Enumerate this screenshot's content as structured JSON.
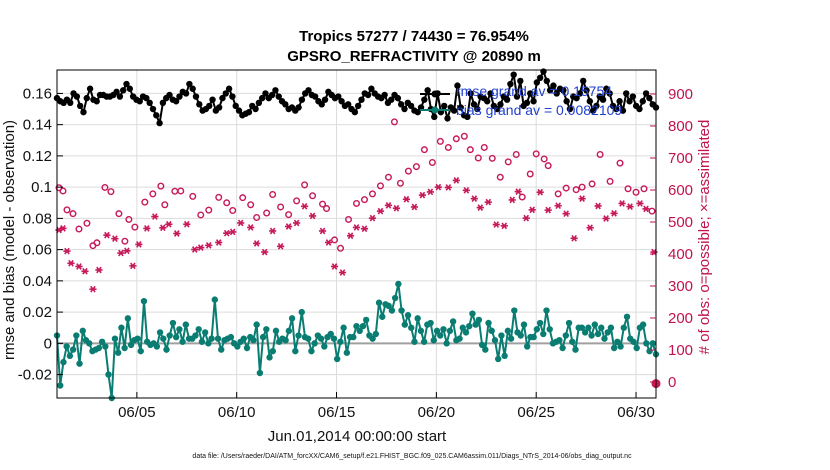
{
  "chart_data": {
    "type": "line",
    "title_line1": "Tropics 57277 / 74430 = 76.954%",
    "title_line2": "GPSRO_REFRACTIVITY @ 20890 m",
    "xlabel": "Jun.01,2014 00:00:00 start",
    "ylabel_left": "rmse and bias (model - observation)",
    "ylabel_right": "# of obs: o=possible; ×=assimilated",
    "xlim": [
      1,
      31
    ],
    "ylim_left": [
      -0.035,
      0.175
    ],
    "ylim_right": [
      -50,
      975
    ],
    "x_ticks": [
      5,
      10,
      15,
      20,
      25,
      30
    ],
    "x_tick_labels": [
      "06/05",
      "06/10",
      "06/15",
      "06/20",
      "06/25",
      "06/30"
    ],
    "y_ticks_left": [
      -0.02,
      0,
      0.02,
      0.04,
      0.06,
      0.08,
      0.1,
      0.12,
      0.14,
      0.16
    ],
    "y_tick_labels_left": [
      "-0.02",
      "0",
      "0.02",
      "0.04",
      "0.06",
      "0.08",
      "0.1",
      "0.12",
      "0.14",
      "0.16"
    ],
    "y_ticks_right": [
      0,
      100,
      200,
      300,
      400,
      500,
      600,
      700,
      800,
      900
    ],
    "y_tick_labels_right": [
      "0",
      "100",
      "200",
      "300",
      "400",
      "500",
      "600",
      "700",
      "800",
      "900"
    ],
    "legend": {
      "rmse_label": "rmse grand av = 0.15754",
      "bias_label": "bias grand av = 0.0082109"
    },
    "footer": "data file: /Users/raeder/DAI/ATM_forcXX/CAM6_setup/f.e21.FHIST_BGC.f09_025.CAM6assim.011/Diags_NTrS_2014-06/obs_diag_output.nc",
    "colors": {
      "rmse": "#000000",
      "bias": "#0a7d72",
      "obs": "#c8185a",
      "zero_line": "#a0a0a0"
    },
    "series": [
      {
        "name": "rmse",
        "axis": "left",
        "values": [
          0.157,
          0.155,
          0.154,
          0.156,
          0.154,
          0.16,
          0.158,
          0.152,
          0.148,
          0.157,
          0.163,
          0.156,
          0.155,
          0.159,
          0.159,
          0.158,
          0.158,
          0.159,
          0.161,
          0.158,
          0.162,
          0.166,
          0.163,
          0.158,
          0.156,
          0.155,
          0.158,
          0.157,
          0.154,
          0.15,
          0.146,
          0.141,
          0.154,
          0.157,
          0.159,
          0.156,
          0.155,
          0.158,
          0.161,
          0.16,
          0.166,
          0.163,
          0.158,
          0.153,
          0.149,
          0.15,
          0.152,
          0.156,
          0.149,
          0.151,
          0.157,
          0.16,
          0.163,
          0.158,
          0.152,
          0.149,
          0.146,
          0.147,
          0.148,
          0.152,
          0.15,
          0.154,
          0.157,
          0.16,
          0.157,
          0.159,
          0.162,
          0.158,
          0.155,
          0.153,
          0.15,
          0.151,
          0.149,
          0.151,
          0.156,
          0.16,
          0.162,
          0.159,
          0.158,
          0.155,
          0.153,
          0.156,
          0.161,
          0.159,
          0.157,
          0.158,
          0.155,
          0.152,
          0.153,
          0.15,
          0.148,
          0.152,
          0.156,
          0.16,
          0.159,
          0.163,
          0.16,
          0.158,
          0.157,
          0.159,
          0.154,
          0.156,
          0.159,
          0.157,
          0.153,
          0.15,
          0.154,
          0.152,
          0.149,
          0.148,
          0.151,
          0.156,
          0.162,
          0.15,
          0.145,
          0.16,
          0.148,
          0.152,
          0.144,
          0.151,
          0.149,
          0.165,
          0.151,
          0.146,
          0.145,
          0.16,
          0.153,
          0.15,
          0.158,
          0.157,
          0.155,
          0.16,
          0.152,
          0.15,
          0.153,
          0.158,
          0.156,
          0.166,
          0.172,
          0.158,
          0.168,
          0.152,
          0.154,
          0.16,
          0.155,
          0.167,
          0.17,
          0.174,
          0.168,
          0.162,
          0.165,
          0.16,
          0.163,
          0.162,
          0.155,
          0.15,
          0.158,
          0.157,
          0.16,
          0.168,
          0.162,
          0.155,
          0.149,
          0.152,
          0.158,
          0.156,
          0.163,
          0.16,
          0.152,
          0.15,
          0.155,
          0.149,
          0.16,
          0.155,
          0.158,
          0.152,
          0.15,
          0.155,
          0.16,
          0.157,
          0.153,
          0.151
        ]
      },
      {
        "name": "bias",
        "axis": "left",
        "values": [
          0.005,
          -0.027,
          -0.012,
          -0.002,
          -0.008,
          -0.004,
          0.005,
          -0.013,
          0.008,
          0.002,
          0.0,
          -0.005,
          -0.004,
          -0.003,
          0.001,
          -0.002,
          -0.02,
          -0.035,
          0.003,
          -0.006,
          0.01,
          -0.003,
          0.016,
          -0.001,
          0.002,
          0.003,
          -0.005,
          0.027,
          0.001,
          -0.001,
          0.0,
          -0.002,
          0.007,
          0.003,
          -0.004,
          0.005,
          0.013,
          0.004,
          0.009,
          0.001,
          0.012,
          0.003,
          0.003,
          0.005,
          0.009,
          0.001,
          0.007,
          0.0,
          0.003,
          0.028,
          0.003,
          -0.004,
          0.002,
          0.003,
          0.004,
          0.0,
          -0.002,
          0.001,
          0.003,
          -0.003,
          0.004,
          0.002,
          0.012,
          -0.019,
          0.004,
          0.009,
          -0.009,
          -0.005,
          0.008,
          0.001,
          0.003,
          0.002,
          0.008,
          0.016,
          -0.005,
          0.005,
          0.02,
          0.004,
          0.003,
          -0.005,
          0.0,
          0.005,
          0.003,
          -0.002,
          0.004,
          0.006,
          0.003,
          -0.01,
          0.001,
          0.01,
          -0.006,
          0.004,
          0.004,
          0.011,
          0.008,
          0.011,
          0.015,
          0.005,
          0.003,
          0.006,
          0.026,
          0.017,
          0.025,
          0.024,
          0.021,
          0.029,
          0.038,
          0.021,
          0.012,
          0.018,
          0.01,
          0.001,
          0.016,
          0.008,
          0.001,
          0.012,
          0.013,
          0.002,
          0.008,
          0.005,
          0.009,
          0.0,
          0.008,
          0.014,
          0.002,
          0.003,
          0.01,
          0.007,
          0.011,
          0.019,
          0.012,
          0.015,
          -0.001,
          -0.004,
          0.013,
          0.008,
          0.002,
          -0.01,
          0.005,
          -0.008,
          0.008,
          0.003,
          0.021,
          0.007,
          0.005,
          0.012,
          -0.002,
          0.004,
          0.004,
          0.009,
          0.013,
          0.006,
          0.021,
          0.009,
          0.0,
          0.001,
          0.002,
          -0.003,
          0.005,
          0.013,
          0.001,
          -0.004,
          0.01,
          0.01,
          0.007,
          0.01,
          0.005,
          0.012,
          0.006,
          0.01,
          0.003,
          0.007,
          0.01,
          -0.003,
          0.001,
          -0.002,
          0.01,
          0.017,
          0.003,
          0.001,
          -0.003,
          0.01,
          0.012,
          0.0,
          -0.005,
          0.0,
          -0.007
        ]
      }
    ],
    "obs_possible": [
      [
        1.1,
        607
      ],
      [
        1.3,
        597
      ],
      [
        1.5,
        538
      ],
      [
        1.8,
        526
      ],
      [
        2.1,
        478
      ],
      [
        2.5,
        496
      ],
      [
        2.8,
        426
      ],
      [
        3.0,
        435
      ],
      [
        3.4,
        608
      ],
      [
        3.7,
        595
      ],
      [
        4.1,
        526
      ],
      [
        4.4,
        440
      ],
      [
        4.6,
        508
      ],
      [
        4.9,
        484
      ],
      [
        5.4,
        562
      ],
      [
        5.8,
        588
      ],
      [
        6.2,
        612
      ],
      [
        6.4,
        554
      ],
      [
        6.9,
        596
      ],
      [
        7.2,
        597
      ],
      [
        7.8,
        580
      ],
      [
        8.2,
        522
      ],
      [
        8.6,
        537
      ],
      [
        9.1,
        577
      ],
      [
        9.5,
        560
      ],
      [
        9.8,
        536
      ],
      [
        10.3,
        576
      ],
      [
        10.7,
        554
      ],
      [
        11.0,
        514
      ],
      [
        11.5,
        528
      ],
      [
        11.8,
        586
      ],
      [
        12.2,
        547
      ],
      [
        12.6,
        523
      ],
      [
        13.0,
        566
      ],
      [
        13.4,
        616
      ],
      [
        13.8,
        582
      ],
      [
        14.3,
        556
      ],
      [
        14.5,
        542
      ],
      [
        14.9,
        444
      ],
      [
        15.2,
        418
      ],
      [
        15.6,
        508
      ],
      [
        16.0,
        558
      ],
      [
        16.4,
        570
      ],
      [
        16.8,
        588
      ],
      [
        17.2,
        613
      ],
      [
        17.6,
        640
      ],
      [
        17.9,
        813
      ],
      [
        18.2,
        621
      ],
      [
        18.6,
        659
      ],
      [
        19.0,
        673
      ],
      [
        19.4,
        726
      ],
      [
        19.8,
        686
      ],
      [
        20.2,
        752
      ],
      [
        20.6,
        733
      ],
      [
        21.0,
        760
      ],
      [
        21.4,
        768
      ],
      [
        21.7,
        726
      ],
      [
        22.1,
        700
      ],
      [
        22.4,
        733
      ],
      [
        22.8,
        699
      ],
      [
        23.2,
        640
      ],
      [
        23.6,
        688
      ],
      [
        24.0,
        711
      ],
      [
        24.3,
        578
      ],
      [
        24.7,
        650
      ],
      [
        25.0,
        713
      ],
      [
        25.4,
        697
      ],
      [
        25.6,
        676
      ],
      [
        26.1,
        588
      ],
      [
        26.5,
        606
      ],
      [
        27.0,
        601
      ],
      [
        27.3,
        609
      ],
      [
        27.8,
        619
      ],
      [
        28.2,
        711
      ],
      [
        28.7,
        627
      ],
      [
        29.2,
        684
      ],
      [
        29.6,
        604
      ],
      [
        30.0,
        593
      ],
      [
        30.4,
        604
      ],
      [
        30.8,
        534
      ]
    ],
    "obs_assimilated": [
      [
        1.1,
        475
      ],
      [
        1.3,
        480
      ],
      [
        1.5,
        409
      ],
      [
        1.7,
        371
      ],
      [
        2.1,
        361
      ],
      [
        2.4,
        346
      ],
      [
        2.8,
        290
      ],
      [
        3.1,
        350
      ],
      [
        3.5,
        459
      ],
      [
        3.9,
        448
      ],
      [
        4.2,
        403
      ],
      [
        4.5,
        410
      ],
      [
        4.8,
        363
      ],
      [
        5.1,
        430
      ],
      [
        5.5,
        480
      ],
      [
        5.9,
        517
      ],
      [
        6.3,
        482
      ],
      [
        6.6,
        493
      ],
      [
        7.0,
        464
      ],
      [
        7.5,
        493
      ],
      [
        7.9,
        414
      ],
      [
        8.2,
        420
      ],
      [
        8.6,
        427
      ],
      [
        9.1,
        436
      ],
      [
        9.5,
        465
      ],
      [
        9.8,
        469
      ],
      [
        10.2,
        497
      ],
      [
        10.7,
        483
      ],
      [
        11.0,
        433
      ],
      [
        11.4,
        406
      ],
      [
        11.8,
        472
      ],
      [
        12.2,
        424
      ],
      [
        12.6,
        486
      ],
      [
        13.0,
        497
      ],
      [
        13.4,
        549
      ],
      [
        13.8,
        519
      ],
      [
        14.3,
        472
      ],
      [
        14.6,
        436
      ],
      [
        14.9,
        361
      ],
      [
        15.3,
        342
      ],
      [
        15.7,
        457
      ],
      [
        16.0,
        483
      ],
      [
        16.4,
        479
      ],
      [
        16.8,
        512
      ],
      [
        17.2,
        534
      ],
      [
        17.6,
        552
      ],
      [
        18.0,
        543
      ],
      [
        18.5,
        571
      ],
      [
        18.9,
        547
      ],
      [
        19.3,
        584
      ],
      [
        19.7,
        594
      ],
      [
        20.1,
        609
      ],
      [
        20.6,
        608
      ],
      [
        21.0,
        630
      ],
      [
        21.5,
        599
      ],
      [
        21.9,
        573
      ],
      [
        22.2,
        545
      ],
      [
        22.6,
        562
      ],
      [
        23.0,
        492
      ],
      [
        23.4,
        488
      ],
      [
        23.8,
        569
      ],
      [
        24.1,
        595
      ],
      [
        24.5,
        512
      ],
      [
        24.8,
        538
      ],
      [
        25.2,
        593
      ],
      [
        25.6,
        537
      ],
      [
        26.1,
        551
      ],
      [
        26.5,
        526
      ],
      [
        26.9,
        449
      ],
      [
        27.3,
        573
      ],
      [
        27.7,
        482
      ],
      [
        28.1,
        550
      ],
      [
        28.5,
        511
      ],
      [
        28.9,
        527
      ],
      [
        29.3,
        558
      ],
      [
        29.7,
        548
      ],
      [
        30.2,
        558
      ],
      [
        30.5,
        541
      ],
      [
        30.9,
        406
      ]
    ],
    "obs_possible_extra": [
      [
        31,
        -5
      ]
    ]
  }
}
